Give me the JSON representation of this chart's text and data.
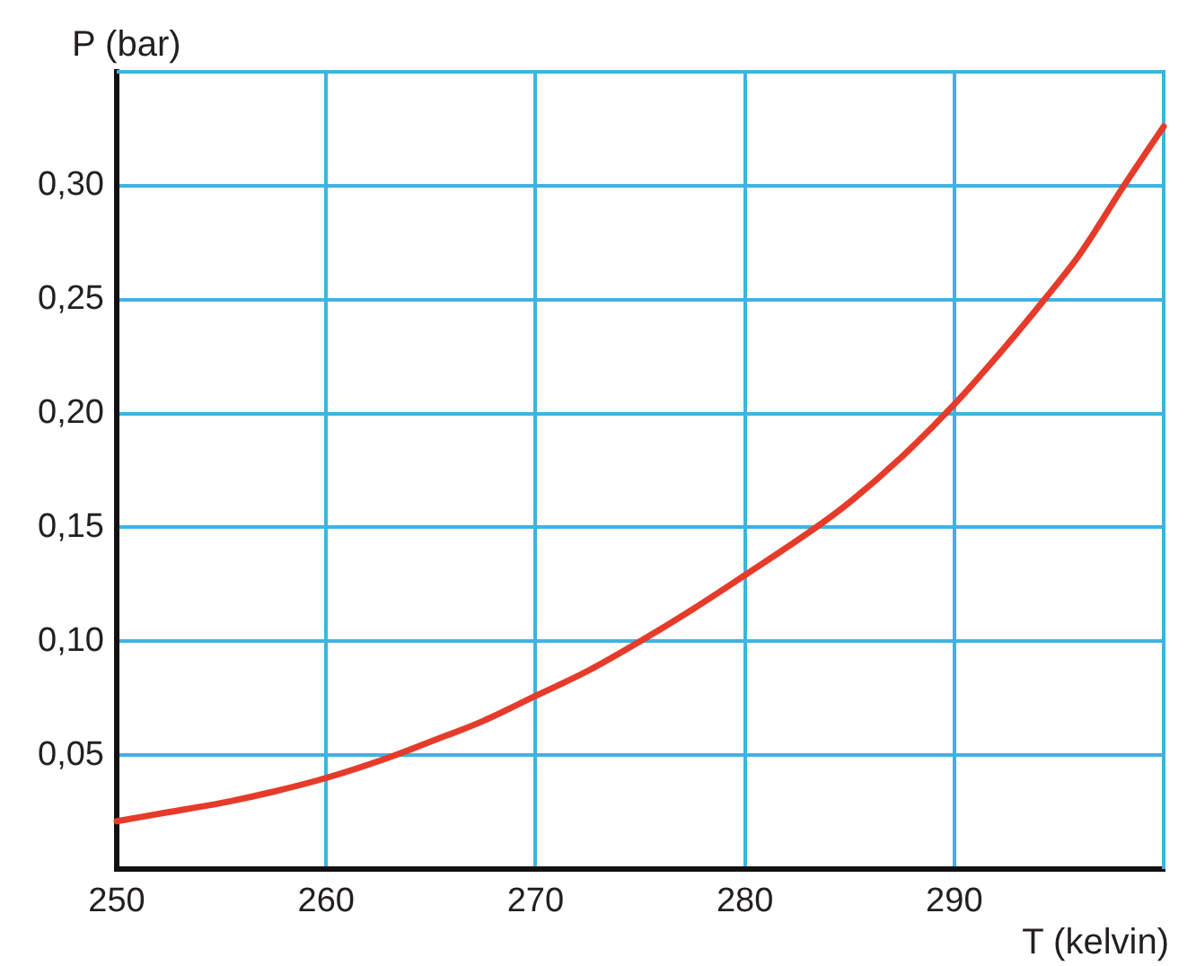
{
  "chart_data": {
    "type": "line",
    "xlabel": "T (kelvin)",
    "ylabel": "P (bar)",
    "x": [
      250,
      252.5,
      255,
      257.5,
      260,
      263,
      265,
      267.5,
      270,
      272.5,
      275,
      277.5,
      280,
      283.4,
      285,
      287.5,
      290,
      292.5,
      294.3,
      296,
      298.1,
      300
    ],
    "series": [
      {
        "color": "#e63b2a",
        "values": [
          0.021,
          0.025,
          0.029,
          0.034,
          0.04,
          0.049,
          0.056,
          0.065,
          0.076,
          0.087,
          0.1,
          0.114,
          0.129,
          0.15,
          0.161,
          0.181,
          0.204,
          0.23,
          0.25,
          0.27,
          0.3,
          0.326
        ]
      }
    ],
    "xlim": [
      250,
      300
    ],
    "ylim": [
      0,
      0.35
    ],
    "xticks": [
      250,
      260,
      270,
      280,
      290
    ],
    "yticks": [
      {
        "value": 0.05,
        "label": "0,05"
      },
      {
        "value": 0.1,
        "label": "0,10"
      },
      {
        "value": 0.15,
        "label": "0,15"
      },
      {
        "value": 0.2,
        "label": "0,20"
      },
      {
        "value": 0.25,
        "label": "0,25"
      },
      {
        "value": 0.3,
        "label": "0,30"
      }
    ],
    "grid": true,
    "marker": "none",
    "line_style": "solid",
    "legend": false
  }
}
